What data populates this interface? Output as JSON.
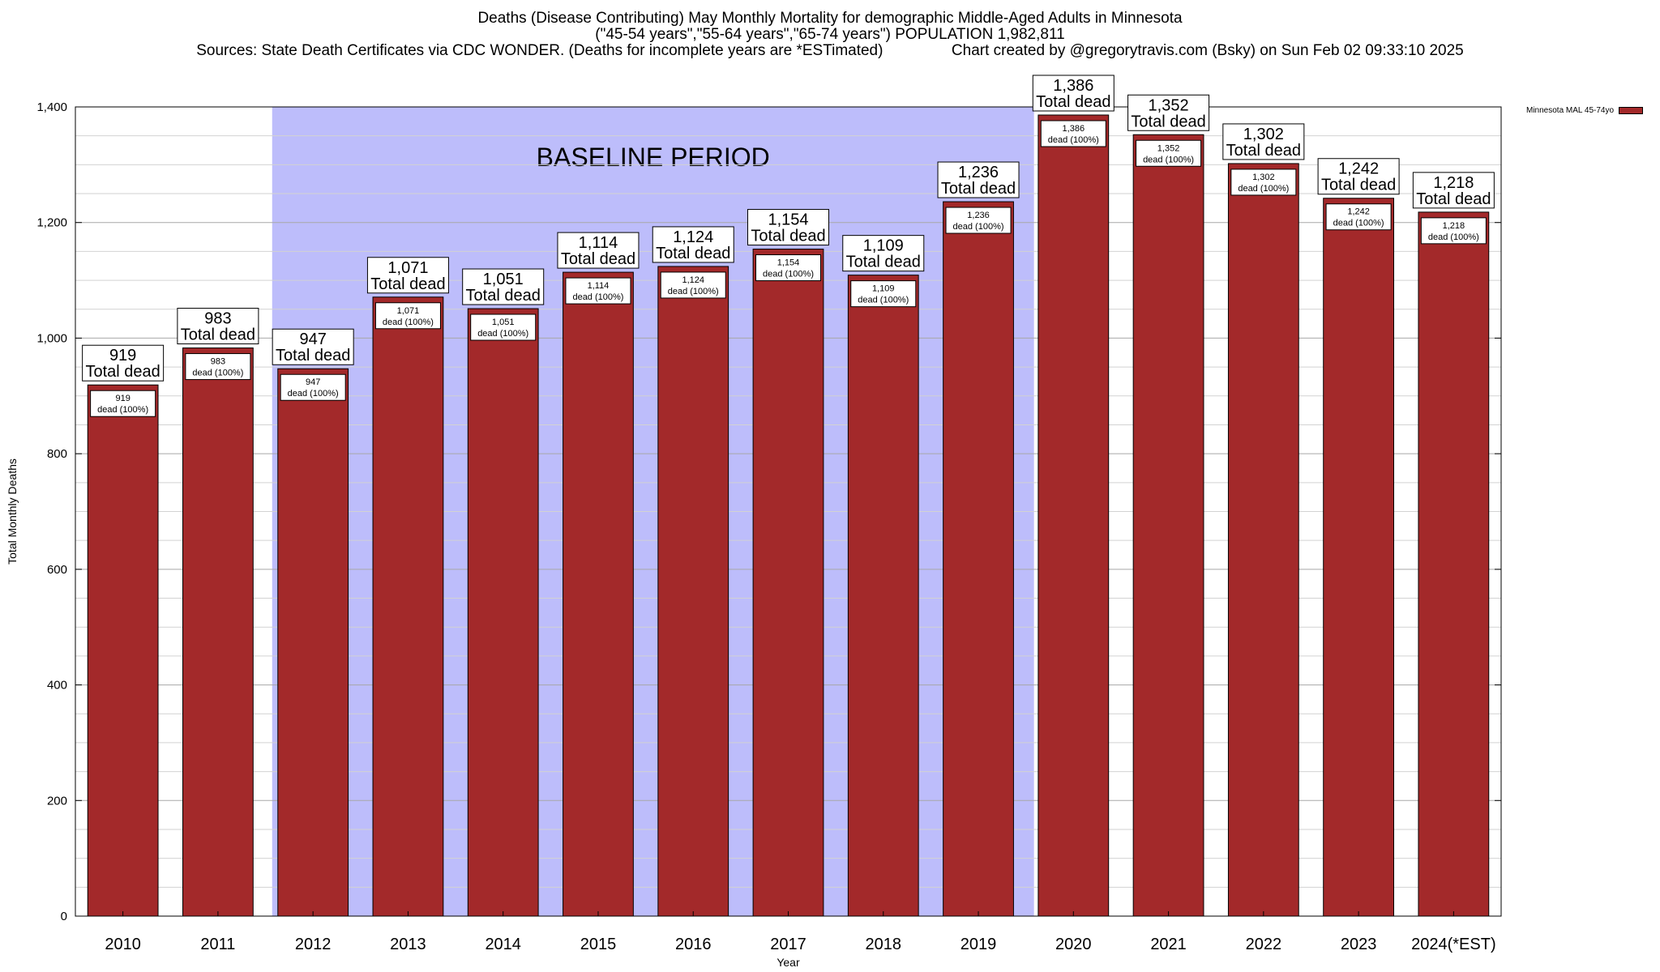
{
  "title_lines": [
    "Deaths (Disease Contributing) May Monthly Mortality for demographic Middle-Aged Adults in Minnesota",
    "(\"45-54 years\",\"55-64 years\",\"65-74 years\") POPULATION 1,982,811",
    "Sources: State Death Certificates via CDC WONDER. (Deaths for incomplete years are *ESTimated)                Chart created by @gregorytravis.com (Bsky) on Sun Feb 02 09:33:10 2025"
  ],
  "legend": {
    "label": "Minnesota MAL 45-74yo",
    "color": "#a3292a"
  },
  "baseline_label": "BASELINE PERIOD",
  "colors": {
    "bar": "#a3292a",
    "baseline": "#bdbdfb",
    "grid": "#c0c0c0"
  },
  "chart_data": {
    "type": "bar",
    "title": "Deaths (Disease Contributing) May Monthly Mortality for demographic Middle-Aged Adults in Minnesota",
    "xlabel": "Year",
    "ylabel": "Total Monthly Deaths",
    "ylim": [
      0,
      1400
    ],
    "yticks": [
      0,
      200,
      400,
      600,
      800,
      1000,
      1200,
      1400
    ],
    "ytick_labels": [
      "0",
      "200",
      "400",
      "600",
      "800",
      "1,000",
      "1,200",
      "1,400"
    ],
    "grid": true,
    "legend_position": "top-right",
    "categories": [
      "2010",
      "2011",
      "2012",
      "2013",
      "2014",
      "2015",
      "2016",
      "2017",
      "2018",
      "2019",
      "2020",
      "2021",
      "2022",
      "2023",
      "2024(*EST)"
    ],
    "values": [
      919,
      983,
      947,
      1071,
      1051,
      1114,
      1124,
      1154,
      1109,
      1236,
      1386,
      1352,
      1302,
      1242,
      1218
    ],
    "value_labels": [
      "919",
      "983",
      "947",
      "1,071",
      "1,051",
      "1,114",
      "1,124",
      "1,154",
      "1,109",
      "1,236",
      "1,386",
      "1,352",
      "1,302",
      "1,242",
      "1,218"
    ],
    "total_label_suffix": "Total dead",
    "inner_label_suffix": "dead (100%)",
    "baseline_period": {
      "start": "2012",
      "end": "2019",
      "label": "BASELINE PERIOD"
    },
    "series": [
      {
        "name": "Minnesota MAL 45-74yo",
        "values": [
          919,
          983,
          947,
          1071,
          1051,
          1114,
          1124,
          1154,
          1109,
          1236,
          1386,
          1352,
          1302,
          1242,
          1218
        ]
      }
    ]
  }
}
